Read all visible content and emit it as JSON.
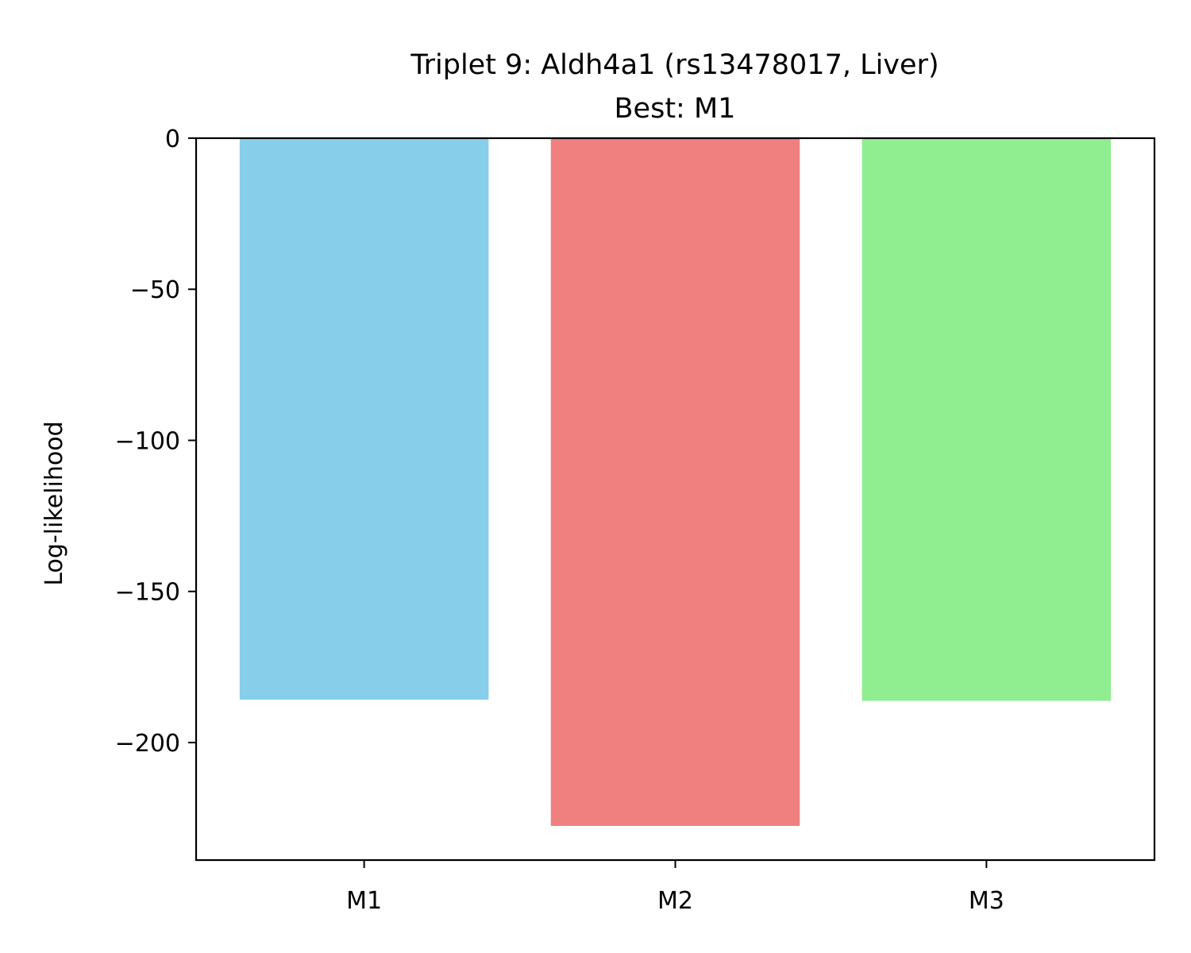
{
  "chart_data": {
    "type": "bar",
    "title": "Triplet 9: Aldh4a1 (rs13478017, Liver)",
    "subtitle": "Best: M1",
    "xlabel": "",
    "ylabel": "Log-likelihood",
    "categories": [
      "M1",
      "M2",
      "M3"
    ],
    "values": [
      -185.8,
      -227.6,
      -186.2
    ],
    "colors": [
      "#87ceeb",
      "#f08080",
      "#90ee90"
    ],
    "ylim": [
      -238.9,
      0
    ],
    "yticks": [
      0,
      -50,
      -100,
      -150,
      -200
    ],
    "ytick_labels": [
      "0",
      "−50",
      "−100",
      "−150",
      "−200"
    ],
    "grid": false,
    "legend": "none"
  }
}
